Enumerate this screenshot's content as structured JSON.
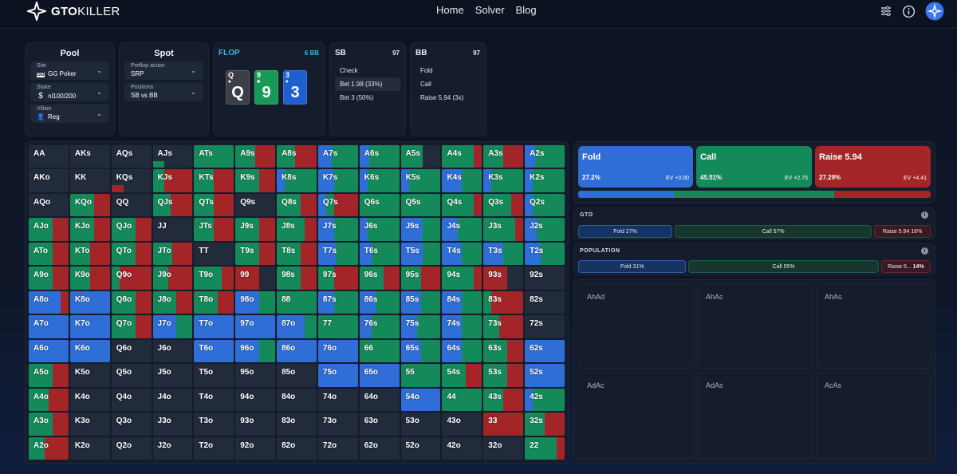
{
  "brand": {
    "name": "GTO",
    "name2": "KILLER"
  },
  "nav": {
    "links": [
      "Home",
      "Solver",
      "Blog"
    ]
  },
  "pool": {
    "title": "Pool",
    "site_label": "Site",
    "site_value": "GG Poker",
    "stake_label": "Stake",
    "stake_value": "nl100/200",
    "villain_label": "Villain",
    "villain_value": "Reg"
  },
  "spot": {
    "title": "Spot",
    "preflop_label": "Preflop action",
    "preflop_value": "SRP",
    "positions_label": "Positions",
    "positions_value": "SB vs BB"
  },
  "flop": {
    "title": "FLOP",
    "pot": "6 BB",
    "cards": [
      {
        "rank": "Q",
        "suit": "♠",
        "color": "#3c3f47"
      },
      {
        "rank": "9",
        "suit": "♣",
        "color": "#169a55"
      },
      {
        "rank": "3",
        "suit": "♦",
        "color": "#1e5fd0"
      }
    ]
  },
  "sb": {
    "title": "SB",
    "stack": "97",
    "actions": [
      "Check",
      "Bet 1.98 (33%)",
      "Bet 3 (50%)"
    ]
  },
  "bb": {
    "title": "BB",
    "stack": "97",
    "actions": [
      "Fold",
      "Call",
      "Raise 5.94 (3x)"
    ]
  },
  "colors": {
    "fold": "#2f6ed6",
    "call": "#148a5a",
    "raise": "#a32527",
    "empty": "#222b3b"
  },
  "grid": {
    "rows": [
      [
        [
          "AA",
          0,
          0,
          0
        ],
        [
          "AKs",
          0,
          0,
          0
        ],
        [
          "AQs",
          0,
          0,
          0
        ],
        [
          "AJs",
          0,
          0.3,
          0
        ],
        [
          "ATs",
          0,
          1,
          0
        ],
        [
          "A9s",
          0,
          0.5,
          0.5
        ],
        [
          "A8s",
          0,
          0.45,
          0.55
        ],
        [
          "A7s",
          0.35,
          0.65,
          0
        ],
        [
          "A6s",
          0.25,
          0.75,
          0
        ],
        [
          "A5s",
          0,
          0.55,
          0
        ],
        [
          "A4s",
          0,
          0.8,
          0.2
        ],
        [
          "A3s",
          0,
          0.5,
          0.5
        ],
        [
          "A2s",
          0.25,
          0.75,
          0
        ]
      ],
      [
        [
          "AKo",
          0,
          0,
          0
        ],
        [
          "KK",
          0,
          0,
          0
        ],
        [
          "KQs",
          0,
          0,
          0.3
        ],
        [
          "KJs",
          0,
          0.3,
          0.7
        ],
        [
          "KTs",
          0,
          0.5,
          0.5
        ],
        [
          "K9s",
          0,
          0.6,
          0.4
        ],
        [
          "K8s",
          0.2,
          0.8,
          0
        ],
        [
          "K7s",
          0.4,
          0.6,
          0
        ],
        [
          "K6s",
          0.2,
          0.8,
          0
        ],
        [
          "K5s",
          0.2,
          0.8,
          0
        ],
        [
          "K4s",
          0.5,
          0.5,
          0
        ],
        [
          "K3s",
          0.2,
          0.8,
          0
        ],
        [
          "K2s",
          0.2,
          0.8,
          0
        ]
      ],
      [
        [
          "AQo",
          0,
          0,
          0
        ],
        [
          "KQo",
          0,
          0.6,
          0.4
        ],
        [
          "QQ",
          0,
          0,
          0
        ],
        [
          "QJs",
          0,
          0.45,
          0.55
        ],
        [
          "QTs",
          0,
          0.5,
          0.5
        ],
        [
          "Q9s",
          0,
          0,
          0
        ],
        [
          "Q8s",
          0,
          0.6,
          0.4
        ],
        [
          "Q7s",
          0.2,
          0.2,
          0.6
        ],
        [
          "Q6s",
          0,
          1,
          0
        ],
        [
          "Q5s",
          0,
          1,
          0
        ],
        [
          "Q4s",
          0,
          0.8,
          0.2
        ],
        [
          "Q3s",
          0,
          0.7,
          0.3
        ],
        [
          "Q2s",
          0.2,
          0.8,
          0
        ]
      ],
      [
        [
          "AJo",
          0,
          0.6,
          0.4
        ],
        [
          "KJo",
          0,
          0.6,
          0.4
        ],
        [
          "QJo",
          0,
          0.6,
          0.4
        ],
        [
          "JJ",
          0,
          0,
          0
        ],
        [
          "JTs",
          0,
          0.5,
          0.5
        ],
        [
          "J9s",
          0,
          0.6,
          0.4
        ],
        [
          "J8s",
          0,
          0.7,
          0.3
        ],
        [
          "J7s",
          0.4,
          0.6,
          0
        ],
        [
          "J6s",
          0.2,
          0.8,
          0
        ],
        [
          "J5s",
          0.55,
          0.45,
          0
        ],
        [
          "J4s",
          0.4,
          0.6,
          0
        ],
        [
          "J3s",
          0,
          0.8,
          0.2
        ],
        [
          "J2s",
          0.3,
          0.7,
          0
        ]
      ],
      [
        [
          "ATo",
          0,
          0.6,
          0.4
        ],
        [
          "KTo",
          0,
          0.5,
          0.5
        ],
        [
          "QTo",
          0,
          0.6,
          0.4
        ],
        [
          "JTo",
          0,
          0.5,
          0.5
        ],
        [
          "TT",
          0,
          0,
          0
        ],
        [
          "T9s",
          0,
          0.6,
          0.4
        ],
        [
          "T8s",
          0,
          0.6,
          0.4
        ],
        [
          "T7s",
          0.45,
          0.55,
          0
        ],
        [
          "T6s",
          0.3,
          0.7,
          0
        ],
        [
          "T5s",
          0.55,
          0.45,
          0
        ],
        [
          "T4s",
          0.5,
          0.5,
          0
        ],
        [
          "T3s",
          0.5,
          0.5,
          0
        ],
        [
          "T2s",
          0.4,
          0.6,
          0
        ]
      ],
      [
        [
          "A9o",
          0,
          0.6,
          0.4
        ],
        [
          "K9o",
          0,
          0.5,
          0.5
        ],
        [
          "Q9o",
          0,
          0.2,
          0.8
        ],
        [
          "J9o",
          0,
          0.4,
          0.6
        ],
        [
          "T9o",
          0,
          0.7,
          0.3
        ],
        [
          "99",
          0,
          0,
          0.6
        ],
        [
          "98s",
          0,
          0.6,
          0.4
        ],
        [
          "97s",
          0,
          0.4,
          0.6
        ],
        [
          "96s",
          0,
          0.6,
          0.4
        ],
        [
          "95s",
          0,
          0.5,
          0.5
        ],
        [
          "94s",
          0,
          0.8,
          0.2
        ],
        [
          "93s",
          0,
          0,
          0.6
        ],
        [
          "92s",
          0,
          0,
          0
        ]
      ],
      [
        [
          "A8o",
          0.8,
          0,
          0.2
        ],
        [
          "K8o",
          1,
          0,
          0
        ],
        [
          "Q8o",
          0,
          0.6,
          0.4
        ],
        [
          "J8o",
          0,
          0.6,
          0.4
        ],
        [
          "T8o",
          0,
          0.6,
          0.4
        ],
        [
          "98o",
          0.6,
          0.4,
          0
        ],
        [
          "88",
          0,
          1,
          0
        ],
        [
          "87s",
          0.4,
          0.6,
          0
        ],
        [
          "86s",
          0.4,
          0.6,
          0
        ],
        [
          "85s",
          0.5,
          0.5,
          0
        ],
        [
          "84s",
          0.5,
          0.5,
          0
        ],
        [
          "83s",
          0,
          0.2,
          0.8
        ],
        [
          "82s",
          0,
          0,
          0
        ]
      ],
      [
        [
          "A7o",
          1,
          0,
          0
        ],
        [
          "K7o",
          1,
          0,
          0
        ],
        [
          "Q7o",
          0,
          0.6,
          0.4
        ],
        [
          "J7o",
          0.6,
          0.4,
          0
        ],
        [
          "T7o",
          1,
          0,
          0
        ],
        [
          "97o",
          1,
          0,
          0
        ],
        [
          "87o",
          0.7,
          0.3,
          0
        ],
        [
          "77",
          0,
          1,
          0
        ],
        [
          "76s",
          0.3,
          0.7,
          0
        ],
        [
          "75s",
          0.4,
          0.6,
          0
        ],
        [
          "74s",
          0.5,
          0.5,
          0
        ],
        [
          "73s",
          0,
          0.4,
          0.6
        ],
        [
          "72s",
          0,
          0,
          0
        ]
      ],
      [
        [
          "A6o",
          1,
          0,
          0
        ],
        [
          "K6o",
          1,
          0,
          0
        ],
        [
          "Q6o",
          0,
          0,
          0
        ],
        [
          "J6o",
          0,
          0,
          0
        ],
        [
          "T6o",
          1,
          0,
          0
        ],
        [
          "96o",
          0.6,
          0.4,
          0
        ],
        [
          "86o",
          1,
          0,
          0
        ],
        [
          "76o",
          1,
          0,
          0
        ],
        [
          "66",
          0,
          1,
          0
        ],
        [
          "65s",
          0.5,
          0.5,
          0
        ],
        [
          "64s",
          0.5,
          0.5,
          0
        ],
        [
          "63s",
          0,
          0.6,
          0.4
        ],
        [
          "62s",
          1,
          0,
          0
        ]
      ],
      [
        [
          "A5o",
          0,
          0.6,
          0.4
        ],
        [
          "K5o",
          0,
          0,
          0
        ],
        [
          "Q5o",
          0,
          0,
          0
        ],
        [
          "J5o",
          0,
          0,
          0
        ],
        [
          "T5o",
          0,
          0,
          0
        ],
        [
          "95o",
          0,
          0,
          0
        ],
        [
          "85o",
          0,
          0,
          0
        ],
        [
          "75o",
          1,
          0,
          0
        ],
        [
          "65o",
          1,
          0,
          0
        ],
        [
          "55",
          0,
          1,
          0
        ],
        [
          "54s",
          0,
          0.6,
          0.4
        ],
        [
          "53s",
          0,
          0.6,
          0.4
        ],
        [
          "52s",
          1,
          0,
          0
        ]
      ],
      [
        [
          "A4o",
          0,
          0.5,
          0.5
        ],
        [
          "K4o",
          0,
          0,
          0
        ],
        [
          "Q4o",
          0,
          0,
          0
        ],
        [
          "J4o",
          0,
          0,
          0
        ],
        [
          "T4o",
          0,
          0,
          0
        ],
        [
          "94o",
          0,
          0,
          0
        ],
        [
          "84o",
          0,
          0,
          0
        ],
        [
          "74o",
          0,
          0,
          0
        ],
        [
          "64o",
          0,
          0,
          0
        ],
        [
          "54o",
          1,
          0,
          0
        ],
        [
          "44",
          0,
          1,
          0
        ],
        [
          "43s",
          0,
          0.5,
          0.5
        ],
        [
          "42s",
          0.2,
          0.8,
          0
        ]
      ],
      [
        [
          "A3o",
          0,
          0.6,
          0.4
        ],
        [
          "K3o",
          0,
          0,
          0
        ],
        [
          "Q3o",
          0,
          0,
          0
        ],
        [
          "J3o",
          0,
          0,
          0
        ],
        [
          "T3o",
          0,
          0,
          0
        ],
        [
          "93o",
          0,
          0,
          0
        ],
        [
          "83o",
          0,
          0,
          0
        ],
        [
          "73o",
          0,
          0,
          0
        ],
        [
          "63o",
          0,
          0,
          0
        ],
        [
          "53o",
          0,
          0,
          0
        ],
        [
          "43o",
          0,
          0,
          0
        ],
        [
          "33",
          0,
          0,
          1
        ],
        [
          "32s",
          0,
          0.5,
          0.5
        ]
      ],
      [
        [
          "A2o",
          0,
          0.4,
          0.6
        ],
        [
          "K2o",
          0,
          0,
          0
        ],
        [
          "Q2o",
          0,
          0,
          0
        ],
        [
          "J2o",
          0,
          0,
          0
        ],
        [
          "T2o",
          0,
          0,
          0
        ],
        [
          "92o",
          0,
          0,
          0
        ],
        [
          "82o",
          0,
          0,
          0
        ],
        [
          "72o",
          0,
          0,
          0
        ],
        [
          "62o",
          0,
          0,
          0
        ],
        [
          "52o",
          0,
          0,
          0
        ],
        [
          "42o",
          0,
          0,
          0
        ],
        [
          "32o",
          0,
          0,
          0
        ],
        [
          "22",
          0,
          0.8,
          0.2
        ]
      ]
    ]
  },
  "actions": {
    "fold": {
      "name": "Fold",
      "freq": "27.2%",
      "ev": "EV +0.00"
    },
    "call": {
      "name": "Call",
      "freq": "45.51%",
      "ev": "EV +2.75"
    },
    "raise": {
      "name": "Raise 5.94",
      "freq": "27.29%",
      "ev": "EV +4.41"
    },
    "overall_bar": [
      27.2,
      45.51,
      27.29
    ]
  },
  "gto": {
    "title": "GTO",
    "fold": "Fold 27%",
    "call": "Call 57%",
    "raise": "Raise 5.94 16%",
    "fracs": [
      27,
      57,
      16
    ]
  },
  "population": {
    "title": "POPULATION",
    "fold": "Fold 31%",
    "call": "Call 55%",
    "raise": "Raise 5...",
    "raise_pct": "14%",
    "fracs": [
      31,
      55,
      14
    ]
  },
  "combos": [
    "AhAd",
    "AhAc",
    "AhAs",
    "AdAc",
    "AdAs",
    "AcAs"
  ]
}
